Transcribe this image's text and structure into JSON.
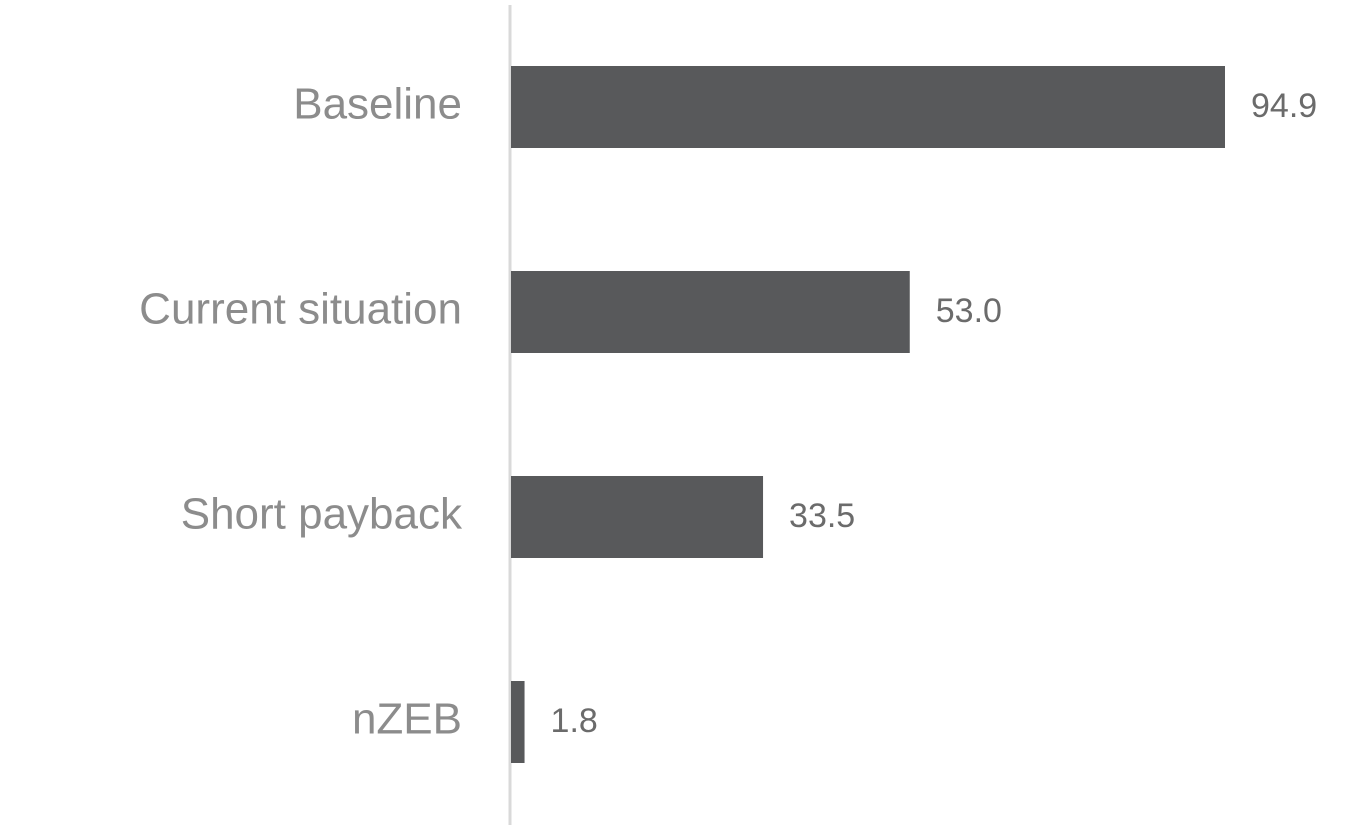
{
  "chart_data": {
    "type": "bar",
    "orientation": "horizontal",
    "categories": [
      "Baseline",
      "Current situation",
      "Short payback",
      "nZEB"
    ],
    "values": [
      94.9,
      53.0,
      33.5,
      1.8
    ],
    "value_labels": [
      "94.9",
      "53.0",
      "33.5",
      "1.8"
    ],
    "color": "#58595b"
  }
}
